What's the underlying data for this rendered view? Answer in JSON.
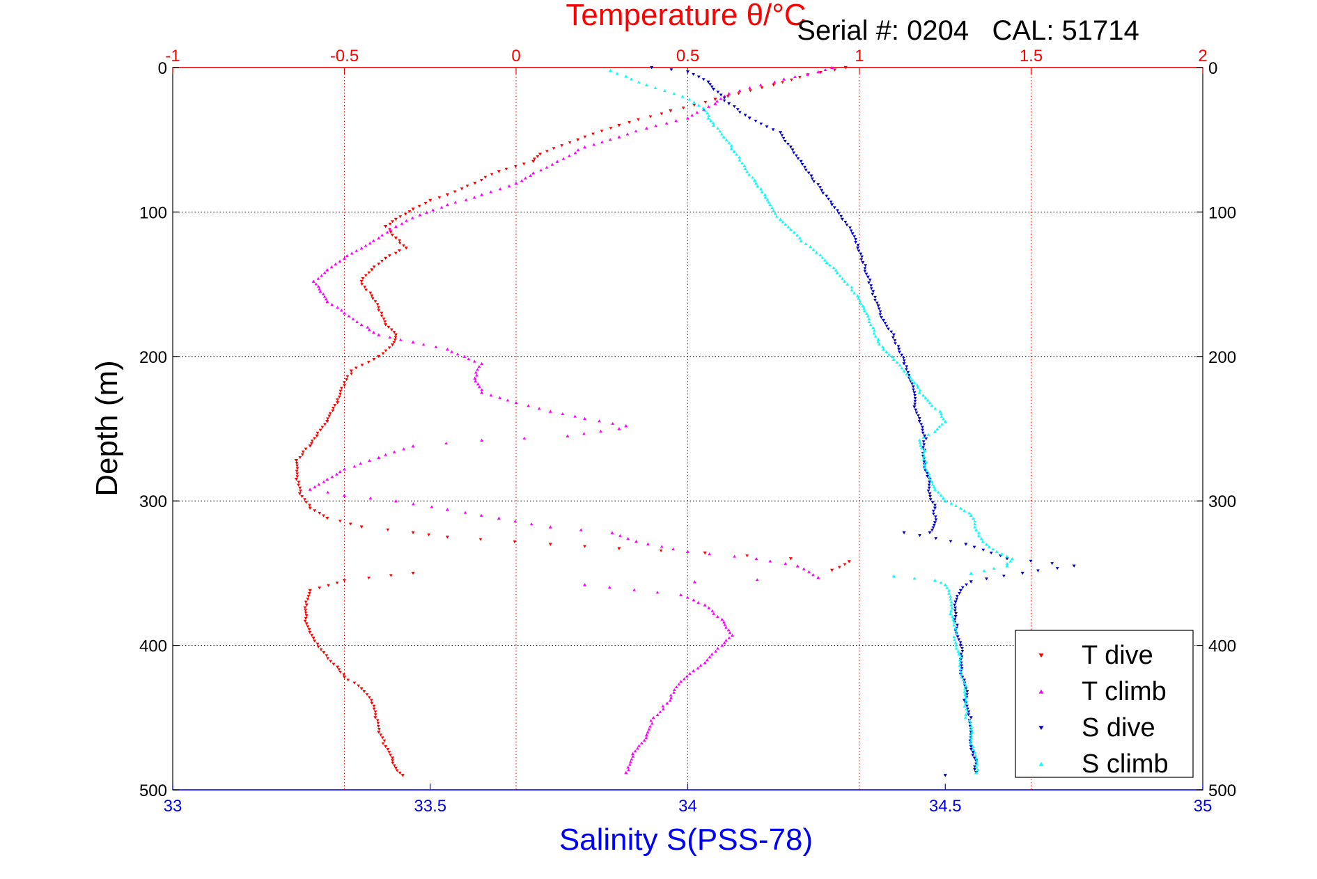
{
  "chart_data": {
    "type": "scatter",
    "title": "Temperature θ/°C",
    "annotation": "Serial #: 0204   CAL: 51714",
    "xlabel_bottom": "Salinity S(PSS-78)",
    "ylabel": "Depth (m)",
    "x_top": {
      "label": "Temperature θ/°C",
      "range": [
        -1,
        2
      ],
      "ticks": [
        "-1",
        "-0.5",
        "0",
        "0.5",
        "1",
        "1.5",
        "2"
      ],
      "color": "#ff0000"
    },
    "x_bottom": {
      "label": "Salinity S(PSS-78)",
      "range": [
        33,
        35
      ],
      "ticks": [
        "33",
        "33.5",
        "34",
        "34.5",
        "35"
      ],
      "color": "#0000ff"
    },
    "y": {
      "range": [
        0,
        500
      ],
      "reversed": true,
      "ticks": [
        "0",
        "100",
        "200",
        "300",
        "400",
        "500"
      ]
    },
    "grid": true,
    "legend_position": "bottom-right",
    "series": [
      {
        "name": "T dive",
        "axis": "top",
        "color": "#ff0000",
        "marker": "triangle-down",
        "points": [
          [
            0.96,
            0
          ],
          [
            0.85,
            5
          ],
          [
            0.75,
            12
          ],
          [
            0.58,
            22
          ],
          [
            0.45,
            30
          ],
          [
            0.3,
            40
          ],
          [
            0.18,
            50
          ],
          [
            0.07,
            60
          ],
          [
            0.05,
            65
          ],
          [
            -0.05,
            72
          ],
          [
            -0.12,
            80
          ],
          [
            -0.2,
            88
          ],
          [
            -0.25,
            92
          ],
          [
            -0.3,
            98
          ],
          [
            -0.35,
            105
          ],
          [
            -0.38,
            110
          ],
          [
            -0.35,
            118
          ],
          [
            -0.32,
            125
          ],
          [
            -0.38,
            132
          ],
          [
            -0.42,
            140
          ],
          [
            -0.45,
            148
          ],
          [
            -0.42,
            158
          ],
          [
            -0.4,
            168
          ],
          [
            -0.38,
            178
          ],
          [
            -0.35,
            185
          ],
          [
            -0.36,
            192
          ],
          [
            -0.4,
            200
          ],
          [
            -0.48,
            210
          ],
          [
            -0.5,
            220
          ],
          [
            -0.52,
            232
          ],
          [
            -0.55,
            245
          ],
          [
            -0.58,
            255
          ],
          [
            -0.6,
            262
          ],
          [
            -0.64,
            272
          ],
          [
            -0.64,
            285
          ],
          [
            -0.63,
            295
          ],
          [
            -0.6,
            305
          ],
          [
            -0.55,
            312
          ],
          [
            -0.45,
            318
          ],
          [
            -0.3,
            322
          ],
          [
            -0.2,
            325
          ],
          [
            0.1,
            330
          ],
          [
            0.3,
            333
          ],
          [
            0.55,
            336
          ],
          [
            0.8,
            340
          ],
          [
            0.97,
            342
          ],
          [
            0.92,
            348
          ],
          [
            -0.3,
            350
          ],
          [
            -0.5,
            355
          ],
          [
            -0.6,
            362
          ],
          [
            -0.61,
            372
          ],
          [
            -0.61,
            385
          ],
          [
            -0.59,
            395
          ],
          [
            -0.56,
            405
          ],
          [
            -0.52,
            415
          ],
          [
            -0.5,
            422
          ],
          [
            -0.45,
            430
          ],
          [
            -0.42,
            440
          ],
          [
            -0.41,
            450
          ],
          [
            -0.4,
            460
          ],
          [
            -0.38,
            470
          ],
          [
            -0.36,
            478
          ],
          [
            -0.35,
            485
          ],
          [
            -0.33,
            490
          ]
        ]
      },
      {
        "name": "T climb",
        "axis": "top",
        "color": "#ff00ff",
        "marker": "triangle-up",
        "points": [
          [
            0.32,
            488
          ],
          [
            0.34,
            475
          ],
          [
            0.38,
            462
          ],
          [
            0.4,
            450
          ],
          [
            0.44,
            440
          ],
          [
            0.48,
            425
          ],
          [
            0.55,
            412
          ],
          [
            0.6,
            400
          ],
          [
            0.63,
            393
          ],
          [
            0.6,
            382
          ],
          [
            0.55,
            372
          ],
          [
            0.48,
            365
          ],
          [
            0.2,
            358
          ],
          [
            0.52,
            356
          ],
          [
            0.88,
            353
          ],
          [
            0.82,
            345
          ],
          [
            0.7,
            340
          ],
          [
            0.5,
            335
          ],
          [
            0.35,
            328
          ],
          [
            0.28,
            322
          ],
          [
            0.1,
            318
          ],
          [
            -0.05,
            312
          ],
          [
            -0.2,
            306
          ],
          [
            -0.35,
            300
          ],
          [
            -0.5,
            296
          ],
          [
            -0.6,
            292
          ],
          [
            -0.55,
            285
          ],
          [
            -0.5,
            278
          ],
          [
            -0.4,
            270
          ],
          [
            -0.3,
            262
          ],
          [
            -0.1,
            258
          ],
          [
            0.15,
            255
          ],
          [
            0.3,
            250
          ],
          [
            0.32,
            248
          ],
          [
            0.2,
            243
          ],
          [
            0.1,
            238
          ],
          [
            0.0,
            232
          ],
          [
            -0.1,
            225
          ],
          [
            -0.12,
            215
          ],
          [
            -0.1,
            205
          ],
          [
            -0.15,
            200
          ],
          [
            -0.2,
            195
          ],
          [
            -0.3,
            190
          ],
          [
            -0.4,
            185
          ],
          [
            -0.45,
            178
          ],
          [
            -0.5,
            170
          ],
          [
            -0.55,
            162
          ],
          [
            -0.57,
            155
          ],
          [
            -0.59,
            148
          ],
          [
            -0.55,
            140
          ],
          [
            -0.5,
            132
          ],
          [
            -0.45,
            125
          ],
          [
            -0.4,
            118
          ],
          [
            -0.35,
            110
          ],
          [
            -0.28,
            102
          ],
          [
            -0.2,
            95
          ],
          [
            -0.1,
            88
          ],
          [
            0.0,
            80
          ],
          [
            0.05,
            73
          ],
          [
            0.12,
            65
          ],
          [
            0.2,
            55
          ],
          [
            0.3,
            48
          ],
          [
            0.38,
            42
          ],
          [
            0.5,
            35
          ],
          [
            0.58,
            25
          ],
          [
            0.62,
            18
          ],
          [
            0.78,
            8
          ],
          [
            0.88,
            3
          ],
          [
            0.92,
            0
          ]
        ]
      },
      {
        "name": "S dive",
        "axis": "bottom",
        "color": "#0000cc",
        "marker": "triangle-down",
        "points": [
          [
            33.93,
            0
          ],
          [
            34.0,
            3
          ],
          [
            34.04,
            10
          ],
          [
            34.05,
            15
          ],
          [
            34.08,
            25
          ],
          [
            34.12,
            35
          ],
          [
            34.18,
            45
          ],
          [
            34.2,
            55
          ],
          [
            34.22,
            65
          ],
          [
            34.24,
            75
          ],
          [
            34.26,
            85
          ],
          [
            34.28,
            95
          ],
          [
            34.3,
            105
          ],
          [
            34.32,
            115
          ],
          [
            34.33,
            125
          ],
          [
            34.34,
            135
          ],
          [
            34.35,
            145
          ],
          [
            34.36,
            155
          ],
          [
            34.37,
            165
          ],
          [
            34.38,
            175
          ],
          [
            34.4,
            185
          ],
          [
            34.41,
            195
          ],
          [
            34.42,
            205
          ],
          [
            34.43,
            215
          ],
          [
            34.44,
            225
          ],
          [
            34.44,
            235
          ],
          [
            34.45,
            245
          ],
          [
            34.46,
            255
          ],
          [
            34.46,
            265
          ],
          [
            34.46,
            275
          ],
          [
            34.47,
            285
          ],
          [
            34.47,
            295
          ],
          [
            34.48,
            305
          ],
          [
            34.48,
            315
          ],
          [
            34.47,
            322
          ],
          [
            34.42,
            322
          ],
          [
            34.54,
            330
          ],
          [
            34.62,
            340
          ],
          [
            34.75,
            345
          ],
          [
            34.65,
            350
          ],
          [
            34.55,
            356
          ],
          [
            34.53,
            362
          ],
          [
            34.52,
            370
          ],
          [
            34.52,
            380
          ],
          [
            34.52,
            390
          ],
          [
            34.53,
            400
          ],
          [
            34.53,
            410
          ],
          [
            34.53,
            420
          ],
          [
            34.54,
            430
          ],
          [
            34.54,
            440
          ],
          [
            34.55,
            450
          ],
          [
            34.55,
            460
          ],
          [
            34.55,
            470
          ],
          [
            34.56,
            480
          ],
          [
            34.56,
            488
          ],
          [
            34.5,
            490
          ]
        ]
      },
      {
        "name": "S climb",
        "axis": "bottom",
        "color": "#00ffff",
        "marker": "triangle-up",
        "points": [
          [
            34.56,
            488
          ],
          [
            34.56,
            478
          ],
          [
            34.55,
            468
          ],
          [
            34.55,
            458
          ],
          [
            34.54,
            448
          ],
          [
            34.54,
            438
          ],
          [
            34.54,
            428
          ],
          [
            34.53,
            418
          ],
          [
            34.53,
            408
          ],
          [
            34.52,
            398
          ],
          [
            34.52,
            388
          ],
          [
            34.51,
            378
          ],
          [
            34.51,
            368
          ],
          [
            34.5,
            358
          ],
          [
            34.48,
            355
          ],
          [
            34.4,
            352
          ],
          [
            34.55,
            350
          ],
          [
            34.62,
            345
          ],
          [
            34.63,
            340
          ],
          [
            34.6,
            335
          ],
          [
            34.58,
            330
          ],
          [
            34.56,
            320
          ],
          [
            34.55,
            310
          ],
          [
            34.53,
            305
          ],
          [
            34.5,
            300
          ],
          [
            34.48,
            292
          ],
          [
            34.47,
            285
          ],
          [
            34.46,
            275
          ],
          [
            34.46,
            265
          ],
          [
            34.45,
            258
          ],
          [
            34.48,
            252
          ],
          [
            34.5,
            245
          ],
          [
            34.49,
            238
          ],
          [
            34.47,
            232
          ],
          [
            34.45,
            225
          ],
          [
            34.44,
            218
          ],
          [
            34.42,
            210
          ],
          [
            34.4,
            202
          ],
          [
            34.38,
            195
          ],
          [
            34.37,
            188
          ],
          [
            34.36,
            180
          ],
          [
            34.35,
            172
          ],
          [
            34.34,
            165
          ],
          [
            34.33,
            158
          ],
          [
            34.31,
            150
          ],
          [
            34.29,
            142
          ],
          [
            34.27,
            135
          ],
          [
            34.25,
            128
          ],
          [
            34.22,
            120
          ],
          [
            34.2,
            112
          ],
          [
            34.18,
            105
          ],
          [
            34.16,
            95
          ],
          [
            34.15,
            88
          ],
          [
            34.13,
            78
          ],
          [
            34.11,
            68
          ],
          [
            34.09,
            58
          ],
          [
            34.07,
            48
          ],
          [
            34.05,
            40
          ],
          [
            34.04,
            35
          ],
          [
            34.03,
            28
          ],
          [
            33.99,
            20
          ],
          [
            33.92,
            12
          ],
          [
            33.88,
            6
          ],
          [
            33.85,
            2
          ]
        ]
      }
    ]
  }
}
